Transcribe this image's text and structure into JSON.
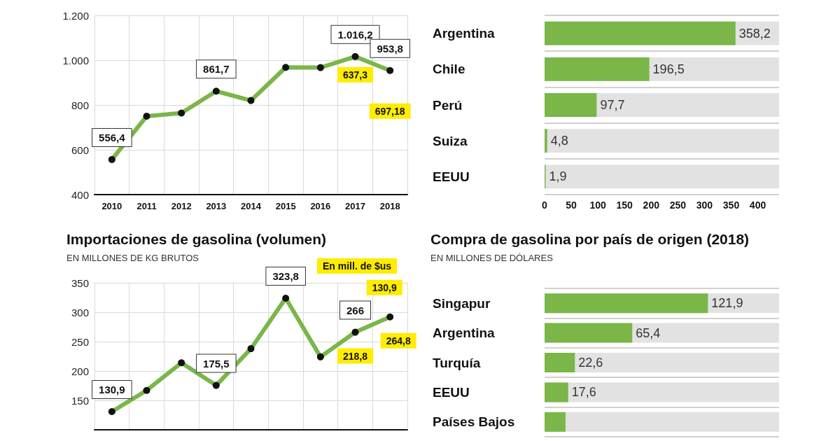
{
  "chart_data": [
    {
      "type": "line",
      "categories": [
        "2010",
        "2011",
        "2012",
        "2013",
        "2014",
        "2015",
        "2016",
        "2017",
        "2018"
      ],
      "series": [
        {
          "color": "#7ab648",
          "values": [
            556.4,
            750,
            764,
            861.7,
            820,
            968,
            967,
            1016.2,
            953.8
          ],
          "value_labels": [
            "556,4",
            null,
            null,
            "861,7",
            null,
            null,
            null,
            "1.016,2",
            "953,8"
          ]
        }
      ],
      "ylim": [
        400,
        1200
      ],
      "yticks": [
        400,
        600,
        800,
        {
          "value": 1000,
          "label": "1.000"
        },
        {
          "value": 1200,
          "label": "1.200"
        }
      ],
      "annotations": [
        "637,3",
        "697,18"
      ],
      "grid": true,
      "marker": "circle",
      "line_style": "solid"
    },
    {
      "type": "bar",
      "orientation": "horizontal",
      "categories": [
        "Argentina",
        "Chile",
        "Perú",
        "Suiza",
        "EEUU"
      ],
      "series": [
        {
          "color": "#7ab648",
          "values": [
            358.2,
            196.5,
            97.7,
            4.8,
            1.9
          ],
          "value_labels": [
            "358,2",
            "196,5",
            "97,7",
            "4,8",
            "1,9"
          ]
        }
      ],
      "xlim": [
        0,
        440
      ],
      "xticks": [
        0,
        50,
        100,
        150,
        200,
        250,
        300,
        350,
        400
      ],
      "grid": "y"
    },
    {
      "type": "line",
      "title": "Importaciones de gasolina (volumen)",
      "subtitle": "EN MILLONES DE KG BRUTOS",
      "categories": [
        null,
        null,
        null,
        null,
        null,
        null,
        null,
        null,
        null
      ],
      "series": [
        {
          "color": "#7ab648",
          "values": [
            130.9,
            167,
            214,
            175.5,
            238,
            323.8,
            224,
            266,
            292
          ],
          "value_labels": [
            "130,9",
            null,
            null,
            "175,5",
            null,
            "323,8",
            null,
            "266",
            null
          ]
        }
      ],
      "ylim": [
        100,
        350
      ],
      "yticks": [
        {
          "value": 100,
          "label": null
        },
        150,
        200,
        250,
        300,
        350
      ],
      "annotations": [
        "En mill. de $us",
        "218,8",
        "264,8",
        "130,9"
      ],
      "grid": true,
      "marker": "circle",
      "line_style": "solid"
    },
    {
      "type": "bar",
      "orientation": "horizontal",
      "title": "Compra de gasolina por país de origen (2018)",
      "subtitle": "EN MILLONES DE DÓLARES",
      "categories": [
        "Singapur",
        "Argentina",
        "Turquía",
        "EEUU",
        "Países Bajos"
      ],
      "series": [
        {
          "color": "#7ab648",
          "values": [
            121.9,
            65.4,
            22.6,
            17.6,
            15.6
          ],
          "value_labels": [
            "121,9",
            "65,4",
            "22,6",
            "17,6",
            null
          ]
        }
      ],
      "xlim": [
        0,
        175
      ],
      "tick_labels": "y",
      "grid": "y"
    }
  ]
}
